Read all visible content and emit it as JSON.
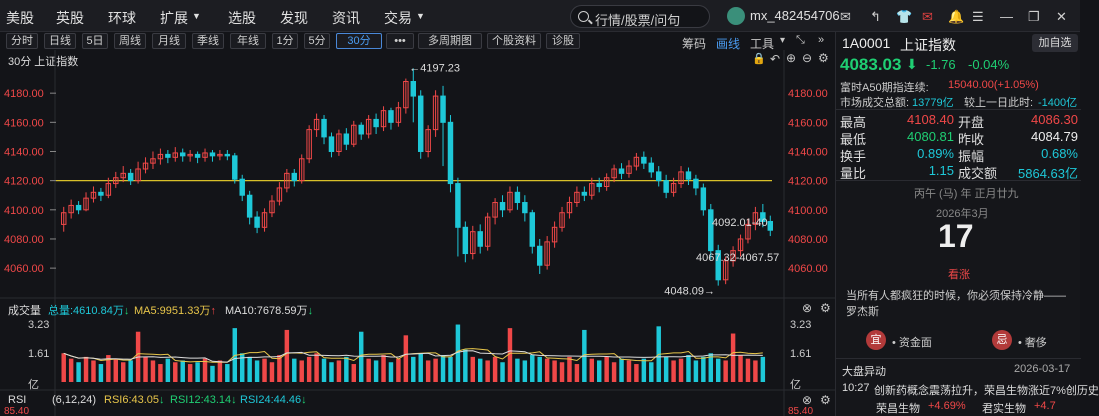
{
  "topbar": {
    "menu": [
      "美股",
      "英股",
      "环球",
      "扩展",
      "选股",
      "发现",
      "资讯",
      "交易"
    ],
    "search_placeholder": "行情/股票/问句",
    "username": "mx_482454706"
  },
  "toolbar": {
    "periods": [
      "分时",
      "日线",
      "5日",
      "周线",
      "月线",
      "季线",
      "年线",
      "1分",
      "5分",
      "30分"
    ],
    "active_period": "30分",
    "more": "•••",
    "multi": "多周期图",
    "stock_info": "个股资料",
    "diagnose": "诊股",
    "chips": "筹码",
    "draw": "画线",
    "tools": "工具"
  },
  "main_chart": {
    "label": "30分  上证指数",
    "high_label": "4197.23",
    "low_label": "4048.09",
    "right_label1": "4092.01-40",
    "right_label2": "4067.32-4067.57",
    "hline_value": 4120,
    "y_ticks": [
      "4180.00",
      "4160.00",
      "4140.00",
      "4120.00",
      "4100.00",
      "4080.00",
      "4060.00"
    ]
  },
  "volume": {
    "label": "成交量",
    "total": "总量:4610.84万",
    "ma5": "MA5:9951.33万",
    "ma10": "MA10:7678.59万",
    "y_ticks": [
      "3.23",
      "1.61",
      "亿"
    ]
  },
  "rsi": {
    "label": "RSI",
    "params": "(6,12,24)",
    "rsi6": "RSI6:43.05",
    "rsi12": "RSI12:43.14",
    "rsi24": "RSI24:44.46"
  },
  "panel": {
    "code": "1A0001",
    "name": "上证指数",
    "add_button": "加自选",
    "price": "4083.03",
    "change": "-1.76",
    "change_pct": "-0.04%",
    "a50_label": "富时A50期指连续:",
    "a50_value": "15040.00(+1.05%)",
    "turnover_label": "市场成交总额:",
    "turnover_value": "13779亿",
    "compare_label": "较上一日此时:",
    "compare_value": "-1400亿",
    "stats": [
      {
        "l1": "最高",
        "v1": "4108.40",
        "l2": "开盘",
        "v2": "4086.30",
        "c1": "red",
        "c2": "red"
      },
      {
        "l1": "最低",
        "v1": "4080.81",
        "l2": "昨收",
        "v2": "4084.79",
        "c1": "green",
        "c2": "white"
      },
      {
        "l1": "换手",
        "v1": "0.89%",
        "l2": "振幅",
        "v2": "0.68%",
        "c1": "cyan",
        "c2": "cyan"
      },
      {
        "l1": "量比",
        "v1": "1.15",
        "l2": "成交额",
        "v2": "5864.63亿",
        "c1": "cyan",
        "c2": "cyan"
      }
    ],
    "lunar": "丙午 (马) 年 正月廿九",
    "month": "2026年3月",
    "day": "17",
    "mood": "看涨",
    "quote": "当所有人都疯狂的时候，你必须保持冷静——罗杰斯",
    "yi_label": "宜",
    "yi_text": "• 资金面",
    "ji_label": "忌",
    "ji_text": "• 奢侈",
    "news_title": "大盘异动",
    "news_date": "2026-03-17",
    "news_time": "10:27",
    "news_text": "创新药概念震荡拉升，荣昌生物涨近7%创历史",
    "stock1_name": "荣昌生物",
    "stock1_change": "+4.69%",
    "stock2_name": "君实生物",
    "stock2_change": "+4.7"
  },
  "chart_data": {
    "type": "candlestick",
    "ylim": [
      4045,
      4200
    ],
    "candles": [
      [
        4090,
        4098,
        4085,
        4102
      ],
      [
        4098,
        4103,
        4094,
        4107
      ],
      [
        4103,
        4100,
        4097,
        4106
      ],
      [
        4100,
        4108,
        4099,
        4112
      ],
      [
        4108,
        4112,
        4105,
        4116
      ],
      [
        4112,
        4110,
        4106,
        4115
      ],
      [
        4110,
        4118,
        4108,
        4122
      ],
      [
        4118,
        4122,
        4115,
        4126
      ],
      [
        4122,
        4125,
        4119,
        4130
      ],
      [
        4125,
        4120,
        4117,
        4128
      ],
      [
        4120,
        4128,
        4118,
        4133
      ],
      [
        4128,
        4132,
        4125,
        4136
      ],
      [
        4132,
        4135,
        4128,
        4140
      ],
      [
        4135,
        4138,
        4131,
        4142
      ],
      [
        4138,
        4136,
        4132,
        4141
      ],
      [
        4136,
        4139,
        4133,
        4143
      ],
      [
        4139,
        4137,
        4133,
        4142
      ],
      [
        4137,
        4138,
        4133,
        4141
      ],
      [
        4138,
        4136,
        4132,
        4140
      ],
      [
        4136,
        4139,
        4133,
        4142
      ],
      [
        4139,
        4137,
        4133,
        4141
      ],
      [
        4137,
        4138,
        4134,
        4141
      ],
      [
        4138,
        4137,
        4134,
        4141
      ],
      [
        4137,
        4121,
        4118,
        4139
      ],
      [
        4121,
        4110,
        4106,
        4124
      ],
      [
        4110,
        4095,
        4090,
        4113
      ],
      [
        4095,
        4088,
        4084,
        4099
      ],
      [
        4088,
        4098,
        4085,
        4101
      ],
      [
        4098,
        4106,
        4095,
        4110
      ],
      [
        4106,
        4115,
        4103,
        4119
      ],
      [
        4115,
        4125,
        4112,
        4128
      ],
      [
        4125,
        4120,
        4116,
        4128
      ],
      [
        4120,
        4135,
        4118,
        4138
      ],
      [
        4135,
        4155,
        4132,
        4158
      ],
      [
        4155,
        4162,
        4150,
        4166
      ],
      [
        4162,
        4150,
        4145,
        4165
      ],
      [
        4150,
        4140,
        4136,
        4153
      ],
      [
        4140,
        4152,
        4137,
        4155
      ],
      [
        4152,
        4145,
        4141,
        4156
      ],
      [
        4145,
        4158,
        4143,
        4161
      ],
      [
        4158,
        4152,
        4148,
        4160
      ],
      [
        4152,
        4162,
        4149,
        4165
      ],
      [
        4162,
        4157,
        4152,
        4166
      ],
      [
        4157,
        4168,
        4154,
        4171
      ],
      [
        4168,
        4160,
        4155,
        4170
      ],
      [
        4160,
        4170,
        4157,
        4174
      ],
      [
        4170,
        4188,
        4166,
        4190
      ],
      [
        4188,
        4178,
        4160,
        4197
      ],
      [
        4178,
        4140,
        4135,
        4182
      ],
      [
        4140,
        4155,
        4136,
        4158
      ],
      [
        4155,
        4178,
        4150,
        4182
      ],
      [
        4178,
        4160,
        4130,
        4185
      ],
      [
        4160,
        4118,
        4112,
        4165
      ],
      [
        4118,
        4088,
        4068,
        4122
      ],
      [
        4088,
        4070,
        4064,
        4092
      ],
      [
        4070,
        4085,
        4066,
        4089
      ],
      [
        4085,
        4075,
        4070,
        4090
      ],
      [
        4075,
        4095,
        4072,
        4098
      ],
      [
        4095,
        4105,
        4090,
        4108
      ],
      [
        4105,
        4100,
        4095,
        4110
      ],
      [
        4100,
        4112,
        4098,
        4116
      ],
      [
        4112,
        4105,
        4100,
        4116
      ],
      [
        4105,
        4098,
        4092,
        4110
      ],
      [
        4098,
        4075,
        4070,
        4100
      ],
      [
        4075,
        4062,
        4056,
        4080
      ],
      [
        4062,
        4078,
        4059,
        4082
      ],
      [
        4078,
        4088,
        4074,
        4092
      ],
      [
        4088,
        4098,
        4085,
        4102
      ],
      [
        4098,
        4105,
        4094,
        4109
      ],
      [
        4105,
        4112,
        4102,
        4116
      ],
      [
        4112,
        4110,
        4106,
        4116
      ],
      [
        4110,
        4118,
        4107,
        4122
      ],
      [
        4118,
        4116,
        4112,
        4122
      ],
      [
        4116,
        4122,
        4113,
        4125
      ],
      [
        4122,
        4128,
        4119,
        4131
      ],
      [
        4128,
        4125,
        4121,
        4132
      ],
      [
        4125,
        4130,
        4122,
        4134
      ],
      [
        4130,
        4136,
        4127,
        4139
      ],
      [
        4136,
        4132,
        4128,
        4140
      ],
      [
        4132,
        4126,
        4122,
        4136
      ],
      [
        4126,
        4120,
        4116,
        4130
      ],
      [
        4120,
        4112,
        4108,
        4124
      ],
      [
        4112,
        4118,
        4109,
        4122
      ],
      [
        4118,
        4126,
        4115,
        4130
      ],
      [
        4126,
        4121,
        4117,
        4129
      ],
      [
        4121,
        4115,
        4110,
        4124
      ],
      [
        4115,
        4100,
        4096,
        4118
      ],
      [
        4100,
        4072,
        4066,
        4104
      ],
      [
        4072,
        4052,
        4048,
        4076
      ],
      [
        4052,
        4065,
        4049,
        4068
      ],
      [
        4065,
        4072,
        4061,
        4075
      ],
      [
        4072,
        4080,
        4068,
        4083
      ],
      [
        4080,
        4090,
        4077,
        4094
      ],
      [
        4090,
        4098,
        4086,
        4102
      ],
      [
        4098,
        4092,
        4088,
        4104
      ],
      [
        4092,
        4086,
        4082,
        4096
      ]
    ],
    "volume": [
      1.6,
      1.3,
      1.1,
      1.4,
      1.2,
      1.0,
      1.5,
      1.3,
      1.1,
      1.2,
      2.8,
      1.4,
      1.2,
      1.0,
      1.3,
      1.1,
      1.2,
      1.0,
      1.1,
      1.3,
      0.9,
      1.2,
      1.0,
      3.0,
      1.6,
      1.4,
      1.2,
      1.3,
      1.1,
      1.5,
      2.9,
      1.3,
      1.2,
      1.4,
      1.6,
      1.3,
      1.1,
      1.2,
      1.4,
      1.0,
      2.8,
      1.3,
      1.2,
      1.5,
      1.1,
      1.3,
      2.6,
      1.4,
      1.6,
      1.2,
      1.3,
      1.5,
      1.4,
      3.2,
      1.8,
      1.4,
      1.3,
      1.2,
      1.4,
      1.1,
      3.0,
      1.3,
      1.2,
      1.5,
      1.4,
      1.3,
      1.2,
      1.1,
      1.4,
      1.0,
      2.9,
      1.3,
      1.2,
      1.4,
      1.1,
      1.3,
      1.2,
      1.0,
      1.3,
      1.1,
      3.1,
      1.4,
      1.2,
      1.3,
      1.5,
      1.2,
      1.4,
      1.6,
      1.3,
      1.2,
      2.7,
      1.5,
      1.3,
      1.2,
      1.4
    ]
  }
}
